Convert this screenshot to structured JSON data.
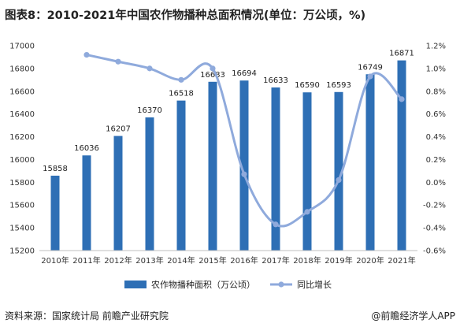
{
  "title": "图表8：2010-2021年中国农作物播种总面积情况(单位：万公顷，%)",
  "footer": {
    "source": "资料来源：国家统计局 前瞻产业研究院",
    "brand": "@前瞻经济学人APP"
  },
  "colors": {
    "bar": "#2e6fb5",
    "line": "#8faadc"
  },
  "chart_data": {
    "type": "bar",
    "categories": [
      "2010年",
      "2011年",
      "2012年",
      "2013年",
      "2014年",
      "2015年",
      "2016年",
      "2017年",
      "2018年",
      "2019年",
      "2020年",
      "2021年"
    ],
    "series": [
      {
        "name": "农作物播种面积（万公顷）",
        "type": "bar",
        "axis": "left",
        "values": [
          15858,
          16036,
          16207,
          16370,
          16518,
          16683,
          16694,
          16633,
          16590,
          16593,
          16749,
          16871
        ]
      },
      {
        "name": "同比增长",
        "type": "line",
        "axis": "right",
        "values": [
          null,
          1.12,
          1.06,
          1.0,
          0.9,
          1.0,
          0.07,
          -0.37,
          -0.26,
          0.02,
          0.93,
          0.73
        ]
      }
    ],
    "ylim_left": [
      15200,
      17000
    ],
    "yticks_left": [
      "15200",
      "15400",
      "15600",
      "15800",
      "16000",
      "16200",
      "16400",
      "16600",
      "16800",
      "17000"
    ],
    "ylim_right": [
      -0.6,
      1.2
    ],
    "yticks_right": [
      "-0.6%",
      "-0.4%",
      "-0.2%",
      "0.0%",
      "0.2%",
      "0.4%",
      "0.6%",
      "0.8%",
      "1.0%",
      "1.2%"
    ],
    "legend_position": "bottom"
  }
}
